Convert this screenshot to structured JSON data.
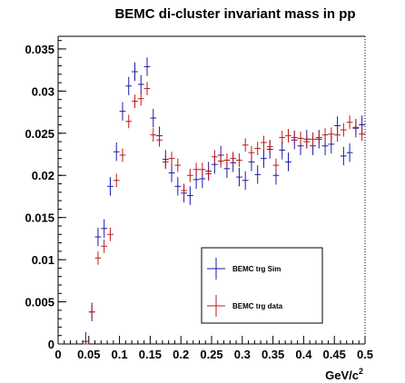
{
  "chart_data": {
    "type": "scatter",
    "title": "BEMC di-cluster invariant mass in pp",
    "xlabel": "GeV/c",
    "xlabel_sup": "2",
    "ylabel": "",
    "xlim": [
      0,
      0.5
    ],
    "ylim": [
      0,
      0.0365
    ],
    "x_ticks": [
      0,
      0.05,
      0.1,
      0.15,
      0.2,
      0.25,
      0.3,
      0.35,
      0.4,
      0.45,
      0.5
    ],
    "x_tick_labels": [
      "0",
      "0.05",
      "0.1",
      "0.15",
      "0.2",
      "0.25",
      "0.3",
      "0.35",
      "0.4",
      "0.45",
      "0.5"
    ],
    "y_ticks": [
      0,
      0.005,
      0.01,
      0.015,
      0.02,
      0.025,
      0.03,
      0.035
    ],
    "y_tick_labels": [
      "0",
      "0.005",
      "0.01",
      "0.015",
      "0.02",
      "0.025",
      "0.03",
      "0.035"
    ],
    "grid": false,
    "legend_position": "bottom-right",
    "series": [
      {
        "name": "BEMC trg Sim",
        "color": "#1a1aa8",
        "x": [
          0.045,
          0.055,
          0.065,
          0.075,
          0.085,
          0.095,
          0.105,
          0.115,
          0.125,
          0.135,
          0.145,
          0.155,
          0.165,
          0.175,
          0.185,
          0.195,
          0.205,
          0.215,
          0.225,
          0.235,
          0.245,
          0.255,
          0.265,
          0.275,
          0.285,
          0.295,
          0.305,
          0.315,
          0.325,
          0.335,
          0.345,
          0.355,
          0.365,
          0.375,
          0.385,
          0.395,
          0.405,
          0.415,
          0.425,
          0.435,
          0.445,
          0.455,
          0.465,
          0.475,
          0.485,
          0.495
        ],
        "y": [
          0.0003,
          0.0038,
          0.0127,
          0.0137,
          0.0187,
          0.0228,
          0.0276,
          0.0306,
          0.0323,
          0.0308,
          0.0329,
          0.0268,
          0.0247,
          0.0219,
          0.0203,
          0.0187,
          0.0179,
          0.0176,
          0.0195,
          0.0196,
          0.0205,
          0.0213,
          0.0224,
          0.0208,
          0.0215,
          0.0198,
          0.0194,
          0.0216,
          0.0201,
          0.022,
          0.0231,
          0.02,
          0.023,
          0.0216,
          0.0242,
          0.0235,
          0.0243,
          0.0235,
          0.0243,
          0.0235,
          0.0237,
          0.0259,
          0.0223,
          0.0227,
          0.0256,
          0.026
        ],
        "xerr": 0.005,
        "yerr": 0.0011
      },
      {
        "name": "BEMC trg data",
        "color": "#c01818",
        "x": [
          0.045,
          0.055,
          0.065,
          0.075,
          0.085,
          0.095,
          0.105,
          0.115,
          0.125,
          0.135,
          0.145,
          0.155,
          0.165,
          0.175,
          0.185,
          0.195,
          0.205,
          0.215,
          0.225,
          0.235,
          0.245,
          0.255,
          0.265,
          0.275,
          0.285,
          0.295,
          0.305,
          0.315,
          0.325,
          0.335,
          0.345,
          0.355,
          0.365,
          0.375,
          0.385,
          0.395,
          0.405,
          0.415,
          0.425,
          0.435,
          0.445,
          0.455,
          0.465,
          0.475,
          0.485,
          0.495
        ],
        "y": [
          0.0,
          0.0038,
          0.0102,
          0.0116,
          0.013,
          0.0194,
          0.0224,
          0.0264,
          0.0288,
          0.0291,
          0.0303,
          0.0248,
          0.0242,
          0.0216,
          0.022,
          0.0212,
          0.0182,
          0.02,
          0.0207,
          0.0207,
          0.0202,
          0.0222,
          0.0217,
          0.0218,
          0.022,
          0.0218,
          0.0236,
          0.0227,
          0.0232,
          0.0239,
          0.0234,
          0.0212,
          0.0245,
          0.0247,
          0.0245,
          0.0244,
          0.024,
          0.0243,
          0.0245,
          0.0248,
          0.0249,
          0.0248,
          0.0254,
          0.0263,
          0.0257,
          0.0249
        ],
        "xerr": 0.005,
        "yerr": 0.0008
      }
    ]
  }
}
